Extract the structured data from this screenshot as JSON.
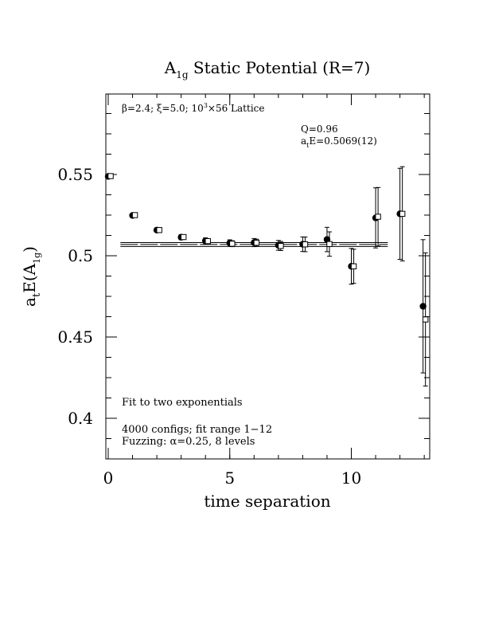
{
  "chart_data": {
    "type": "scatter",
    "title": {
      "main": "A",
      "sub": "1g",
      "rest": " Static Potential (R=7)"
    },
    "xlabel": "time separation",
    "ylabel": {
      "base": "a",
      "base_sub": "t",
      "mid": "E(A",
      "mid_sub": "1g",
      "end": ")"
    },
    "xlim": [
      0,
      13
    ],
    "ylim": [
      0.375,
      0.6
    ],
    "xticks": [
      0,
      5,
      10
    ],
    "yticks": [
      0.4,
      0.45,
      0.5,
      0.55
    ],
    "ytick_labels": [
      "0.4",
      "0.45",
      "0.5",
      "0.55"
    ],
    "xtick_labels": [
      "0",
      "5",
      "10"
    ],
    "annotations": {
      "lattice": {
        "prefix": "β=2.4;  ξ=5.0;  10",
        "sup": "3",
        "suffix": "×56 Lattice"
      },
      "q": "Q=0.96",
      "energy": {
        "base": "a",
        "sub": "t",
        "rest": "E=0.5069(12)"
      },
      "fit": "Fit to two exponentials",
      "configs": "4000 configs; fit range 1−12",
      "fuzzing": "Fuzzing: α=0.25, 8 levels"
    },
    "series": [
      {
        "marker": "filled-circle",
        "x": [
          0,
          1,
          2,
          3,
          4,
          5,
          6,
          7,
          8,
          9,
          10,
          11,
          12,
          12.95
        ],
        "y": [
          0.5488,
          0.5248,
          0.5158,
          0.5114,
          0.5092,
          0.5078,
          0.5081,
          0.5064,
          0.5071,
          0.51,
          0.4935,
          0.5233,
          0.5258,
          0.4689
        ],
        "err": [
          0.0008,
          0.001,
          0.0012,
          0.0015,
          0.0018,
          0.002,
          0.0025,
          0.003,
          0.0045,
          0.0075,
          0.011,
          0.0185,
          0.028,
          0.041
        ]
      },
      {
        "marker": "open-square",
        "x": [
          0.1,
          1.1,
          2.1,
          3.1,
          4.1,
          5.1,
          6.1,
          7.1,
          8.1,
          9.1,
          10.1,
          11.1,
          12.1,
          13.05
        ],
        "y": [
          0.549,
          0.525,
          0.5158,
          0.5115,
          0.509,
          0.5074,
          0.508,
          0.506,
          0.507,
          0.5072,
          0.4935,
          0.524,
          0.5258,
          0.4608
        ],
        "err": [
          0.0006,
          0.0008,
          0.001,
          0.0012,
          0.0015,
          0.0018,
          0.0022,
          0.0028,
          0.0045,
          0.0075,
          0.0105,
          0.018,
          0.029,
          0.041
        ]
      }
    ],
    "fit": {
      "x_range": [
        0.5,
        11.5
      ],
      "value": 0.5069,
      "error": 0.0012
    },
    "grid": false,
    "legend": "none"
  }
}
